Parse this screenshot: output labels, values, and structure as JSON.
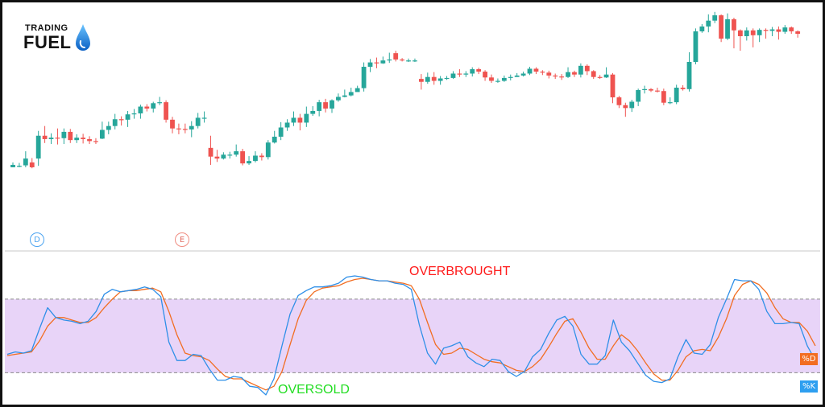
{
  "logo": {
    "line1": "TRADING",
    "line2": "FUEL"
  },
  "markers": {
    "d": "D",
    "e": "E"
  },
  "annotations": {
    "overbought": "OVERBROUGHT",
    "oversold": "OVERSOLD"
  },
  "colors": {
    "up": "#26a69a",
    "down": "#ef5350",
    "k_line": "#2e8fe8",
    "d_line": "#f26d21",
    "band_fill": "#e8d4f8",
    "overbought_text": "#ff1a1a",
    "oversold_text": "#22dd22"
  },
  "chart_data": [
    {
      "type": "candlestick",
      "title": "",
      "candles": [
        [
          0.0,
          0.5,
          1.0,
          0.0
        ],
        [
          0.1,
          0.3,
          0.9,
          0.0
        ],
        [
          0.4,
          1.8,
          3.3,
          0.0
        ],
        [
          1.0,
          0.0,
          1.9,
          -0.2
        ],
        [
          1.8,
          6.5,
          7.5,
          0.3
        ],
        [
          6.5,
          5.8,
          8.5,
          5.0
        ],
        [
          5.8,
          6.1,
          7.0,
          4.8
        ],
        [
          6.1,
          6.0,
          8.0,
          4.7
        ],
        [
          6.0,
          7.3,
          8.0,
          4.8
        ],
        [
          7.3,
          5.6,
          7.9,
          5.0
        ],
        [
          5.6,
          6.1,
          6.8,
          5.0
        ],
        [
          6.1,
          5.8,
          6.9,
          4.9
        ],
        [
          5.8,
          5.4,
          6.4,
          4.8
        ],
        [
          5.4,
          5.2,
          6.0,
          4.8
        ],
        [
          5.9,
          7.7,
          9.4,
          5.8
        ],
        [
          7.7,
          8.5,
          9.4,
          6.8
        ],
        [
          8.5,
          9.9,
          11.0,
          7.8
        ],
        [
          9.9,
          9.8,
          10.5,
          8.6
        ],
        [
          9.8,
          10.9,
          11.6,
          8.3
        ],
        [
          10.9,
          11.1,
          12.0,
          10.0
        ],
        [
          11.1,
          12.5,
          12.9,
          10.0
        ],
        [
          12.5,
          12.1,
          13.0,
          11.5
        ],
        [
          12.1,
          13.2,
          13.5,
          11.3
        ],
        [
          13.2,
          13.4,
          14.5,
          12.8
        ],
        [
          13.4,
          9.8,
          13.8,
          9.2
        ],
        [
          9.8,
          8.0,
          10.4,
          7.0
        ],
        [
          8.0,
          7.9,
          9.0,
          6.8
        ],
        [
          7.9,
          7.8,
          9.0,
          7.0
        ],
        [
          7.8,
          8.5,
          9.5,
          6.2
        ],
        [
          8.5,
          10.2,
          11.2,
          8.0
        ],
        [
          10.2,
          10.2,
          11.5,
          9.2
        ],
        [
          4.0,
          2.2,
          6.5,
          0.5
        ],
        [
          2.2,
          1.8,
          3.6,
          1.1
        ],
        [
          1.8,
          2.6,
          3.1,
          1.6
        ],
        [
          2.6,
          2.6,
          3.2,
          1.8
        ],
        [
          2.6,
          3.3,
          4.7,
          2.2
        ],
        [
          3.3,
          0.8,
          3.8,
          0.4
        ],
        [
          0.8,
          1.3,
          2.3,
          0.5
        ],
        [
          1.3,
          2.4,
          3.3,
          1.0
        ],
        [
          2.4,
          2.1,
          2.9,
          1.4
        ],
        [
          2.1,
          5.1,
          5.6,
          1.6
        ],
        [
          5.1,
          6.3,
          7.5,
          4.9
        ],
        [
          6.3,
          8.2,
          9.3,
          5.6
        ],
        [
          8.2,
          9.2,
          9.9,
          7.5
        ],
        [
          9.2,
          10.2,
          11.5,
          8.5
        ],
        [
          10.2,
          9.2,
          11.0,
          7.6
        ],
        [
          9.2,
          11.0,
          12.5,
          8.3
        ],
        [
          11.0,
          11.6,
          12.6,
          10.6
        ],
        [
          11.6,
          13.4,
          13.9,
          10.5
        ],
        [
          13.4,
          12.1,
          14.1,
          11.3
        ],
        [
          12.1,
          13.8,
          14.0,
          11.2
        ],
        [
          13.8,
          14.5,
          15.2,
          13.5
        ],
        [
          14.5,
          14.8,
          16.0,
          14.4
        ],
        [
          14.8,
          15.5,
          16.4,
          14.6
        ],
        [
          15.5,
          16.3,
          16.8,
          15.6
        ],
        [
          16.3,
          20.7,
          21.6,
          15.6
        ],
        [
          20.7,
          21.6,
          22.3,
          19.6
        ],
        [
          21.6,
          21.4,
          22.6,
          20.4
        ],
        [
          21.4,
          22.0,
          22.8,
          21.3
        ],
        [
          22.0,
          22.2,
          23.6,
          21.5
        ],
        [
          23.5,
          22.2,
          24.0,
          21.8
        ],
        [
          22.2,
          22.0,
          22.5,
          21.8
        ],
        [
          22.0,
          22.0,
          22.4,
          21.7
        ],
        [
          22.0,
          22.0,
          22.4,
          21.7
        ],
        [
          18.2,
          17.6,
          19.2,
          16.0
        ],
        [
          17.6,
          18.6,
          19.5,
          17.2
        ],
        [
          18.6,
          17.8,
          19.6,
          17.0
        ],
        [
          17.8,
          18.3,
          18.8,
          17.0
        ],
        [
          18.3,
          18.4,
          18.8,
          18.0
        ],
        [
          18.4,
          19.3,
          19.8,
          18.2
        ],
        [
          19.3,
          19.1,
          20.2,
          18.6
        ],
        [
          19.1,
          19.3,
          19.8,
          18.6
        ],
        [
          19.3,
          20.2,
          20.6,
          18.7
        ],
        [
          20.2,
          19.7,
          20.5,
          19.2
        ],
        [
          19.7,
          18.5,
          20.0,
          17.8
        ],
        [
          18.5,
          17.8,
          19.1,
          17.4
        ],
        [
          17.8,
          17.8,
          18.3,
          17.4
        ],
        [
          17.8,
          18.4,
          18.9,
          17.6
        ],
        [
          18.4,
          18.6,
          19.1,
          17.9
        ],
        [
          18.6,
          18.9,
          19.4,
          18.6
        ],
        [
          18.9,
          19.3,
          19.7,
          18.7
        ],
        [
          19.3,
          20.3,
          20.7,
          19.0
        ],
        [
          20.3,
          19.7,
          20.6,
          19.2
        ],
        [
          19.7,
          19.5,
          20.0,
          19.0
        ],
        [
          19.5,
          18.9,
          19.9,
          18.3
        ],
        [
          18.9,
          18.7,
          19.3,
          18.2
        ],
        [
          18.7,
          18.6,
          19.2,
          18.0
        ],
        [
          18.6,
          19.6,
          20.6,
          18.4
        ],
        [
          19.6,
          19.1,
          19.9,
          18.6
        ],
        [
          19.1,
          20.9,
          21.4,
          18.5
        ],
        [
          20.9,
          19.8,
          21.2,
          19.0
        ],
        [
          19.8,
          18.6,
          20.0,
          18.2
        ],
        [
          18.6,
          18.5,
          19.0,
          18.2
        ],
        [
          18.5,
          19.1,
          20.6,
          18.4
        ],
        [
          19.1,
          14.4,
          19.4,
          13.2
        ],
        [
          14.4,
          12.8,
          14.7,
          12.2
        ],
        [
          12.8,
          12.2,
          13.3,
          10.4
        ],
        [
          12.2,
          13.5,
          13.9,
          11.4
        ],
        [
          13.5,
          15.9,
          16.2,
          12.6
        ],
        [
          15.9,
          16.1,
          16.8,
          15.2
        ],
        [
          16.1,
          15.8,
          16.3,
          15.5
        ],
        [
          15.8,
          15.7,
          16.4,
          15.4
        ],
        [
          15.7,
          13.3,
          16.2,
          12.8
        ],
        [
          13.3,
          13.4,
          14.4,
          13.0
        ],
        [
          13.4,
          16.4,
          17.0,
          13.0
        ],
        [
          16.4,
          16.1,
          16.9,
          15.8
        ],
        [
          16.1,
          21.7,
          23.7,
          15.6
        ],
        [
          21.7,
          28.0,
          28.6,
          21.2
        ],
        [
          28.0,
          29.0,
          29.5,
          27.7
        ],
        [
          29.0,
          30.2,
          31.5,
          27.8
        ],
        [
          30.2,
          31.3,
          32.0,
          29.7
        ],
        [
          31.3,
          26.5,
          31.5,
          25.8
        ],
        [
          26.5,
          30.5,
          31.7,
          26.2
        ],
        [
          30.5,
          28.2,
          30.8,
          24.5
        ],
        [
          28.2,
          27.0,
          28.4,
          24.0
        ],
        [
          27.0,
          28.2,
          28.8,
          26.1
        ],
        [
          28.2,
          27.2,
          28.6,
          24.7
        ],
        [
          27.2,
          28.3,
          28.6,
          25.8
        ],
        [
          28.3,
          28.1,
          28.6,
          26.5
        ],
        [
          28.1,
          28.4,
          28.9,
          27.0
        ],
        [
          28.4,
          27.9,
          29.0,
          26.3
        ],
        [
          27.9,
          28.8,
          29.3,
          27.5
        ],
        [
          28.8,
          28.0,
          29.0,
          27.5
        ],
        [
          28.0,
          27.5,
          28.2,
          26.7
        ]
      ]
    },
    {
      "type": "line",
      "title": "",
      "ylim": [
        -4,
        118
      ],
      "bands": {
        "overbought": 80,
        "oversold": 20
      },
      "series": [
        {
          "name": "%K",
          "values": [
            35,
            37,
            36,
            38,
            56,
            73,
            65,
            63,
            62,
            60,
            62,
            70,
            84,
            88,
            86,
            87,
            88,
            90,
            88,
            82,
            45,
            30,
            30,
            35,
            34,
            23,
            14,
            14,
            17,
            16,
            9,
            8,
            2,
            15,
            42,
            68,
            83,
            87,
            90,
            90,
            91,
            93,
            98,
            99,
            98,
            96,
            95,
            95,
            93,
            92,
            88,
            59,
            36,
            27,
            40,
            42,
            45,
            33,
            28,
            25,
            31,
            30,
            21,
            17,
            21,
            33,
            39,
            52,
            63,
            66,
            58,
            35,
            27,
            27,
            34,
            63,
            45,
            38,
            28,
            18,
            13,
            12,
            15,
            33,
            47,
            36,
            35,
            43,
            65,
            80,
            96,
            95,
            95,
            88,
            70,
            60,
            60,
            61,
            60,
            42,
            30
          ]
        },
        {
          "name": "%D",
          "values": [
            34,
            35,
            36,
            37,
            46,
            58,
            65,
            65,
            63,
            61,
            61,
            65,
            73,
            80,
            86,
            87,
            87,
            88,
            89,
            86,
            70,
            51,
            36,
            34,
            33,
            30,
            23,
            17,
            15,
            15,
            12,
            9,
            6,
            9,
            21,
            43,
            64,
            79,
            86,
            89,
            90,
            91,
            94,
            96,
            97,
            96,
            95,
            95,
            94,
            93,
            91,
            80,
            61,
            43,
            35,
            36,
            40,
            39,
            35,
            31,
            29,
            28,
            25,
            22,
            21,
            25,
            31,
            41,
            52,
            62,
            64,
            53,
            40,
            31,
            31,
            42,
            51,
            46,
            38,
            28,
            19,
            14,
            14,
            22,
            33,
            38,
            39,
            38,
            49,
            64,
            83,
            92,
            95,
            92,
            85,
            73,
            64,
            61,
            61,
            54,
            42
          ]
        }
      ]
    }
  ]
}
